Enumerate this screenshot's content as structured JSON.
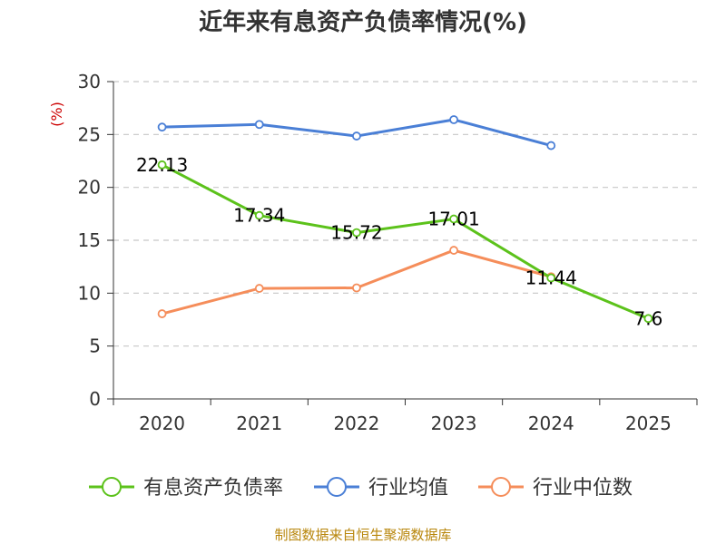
{
  "chart_data": {
    "type": "line",
    "title": "近年来有息资产负债率情况(%)",
    "ylabel": "(%)",
    "xlabel": "",
    "categories": [
      "2020",
      "2021",
      "2022",
      "2023",
      "2024",
      "2025"
    ],
    "ylim": [
      0,
      30
    ],
    "yticks": [
      0,
      5,
      10,
      15,
      20,
      25,
      30
    ],
    "grid": true,
    "legend_position": "bottom",
    "series": [
      {
        "name": "有息资产负债率",
        "color": "#5cc21b",
        "values": [
          22.13,
          17.34,
          15.72,
          17.01,
          11.44,
          7.6
        ],
        "labels": [
          "22.13",
          "17.34",
          "15.72",
          "17.01",
          "11.44",
          "7.6"
        ]
      },
      {
        "name": "行业均值",
        "color": "#4a7fd6",
        "values": [
          25.7,
          25.95,
          24.85,
          26.4,
          23.95,
          null
        ]
      },
      {
        "name": "行业中位数",
        "color": "#f58d5a",
        "values": [
          8.05,
          10.45,
          10.5,
          14.05,
          11.55,
          null
        ]
      }
    ],
    "source": "制图数据来自恒生聚源数据库"
  }
}
